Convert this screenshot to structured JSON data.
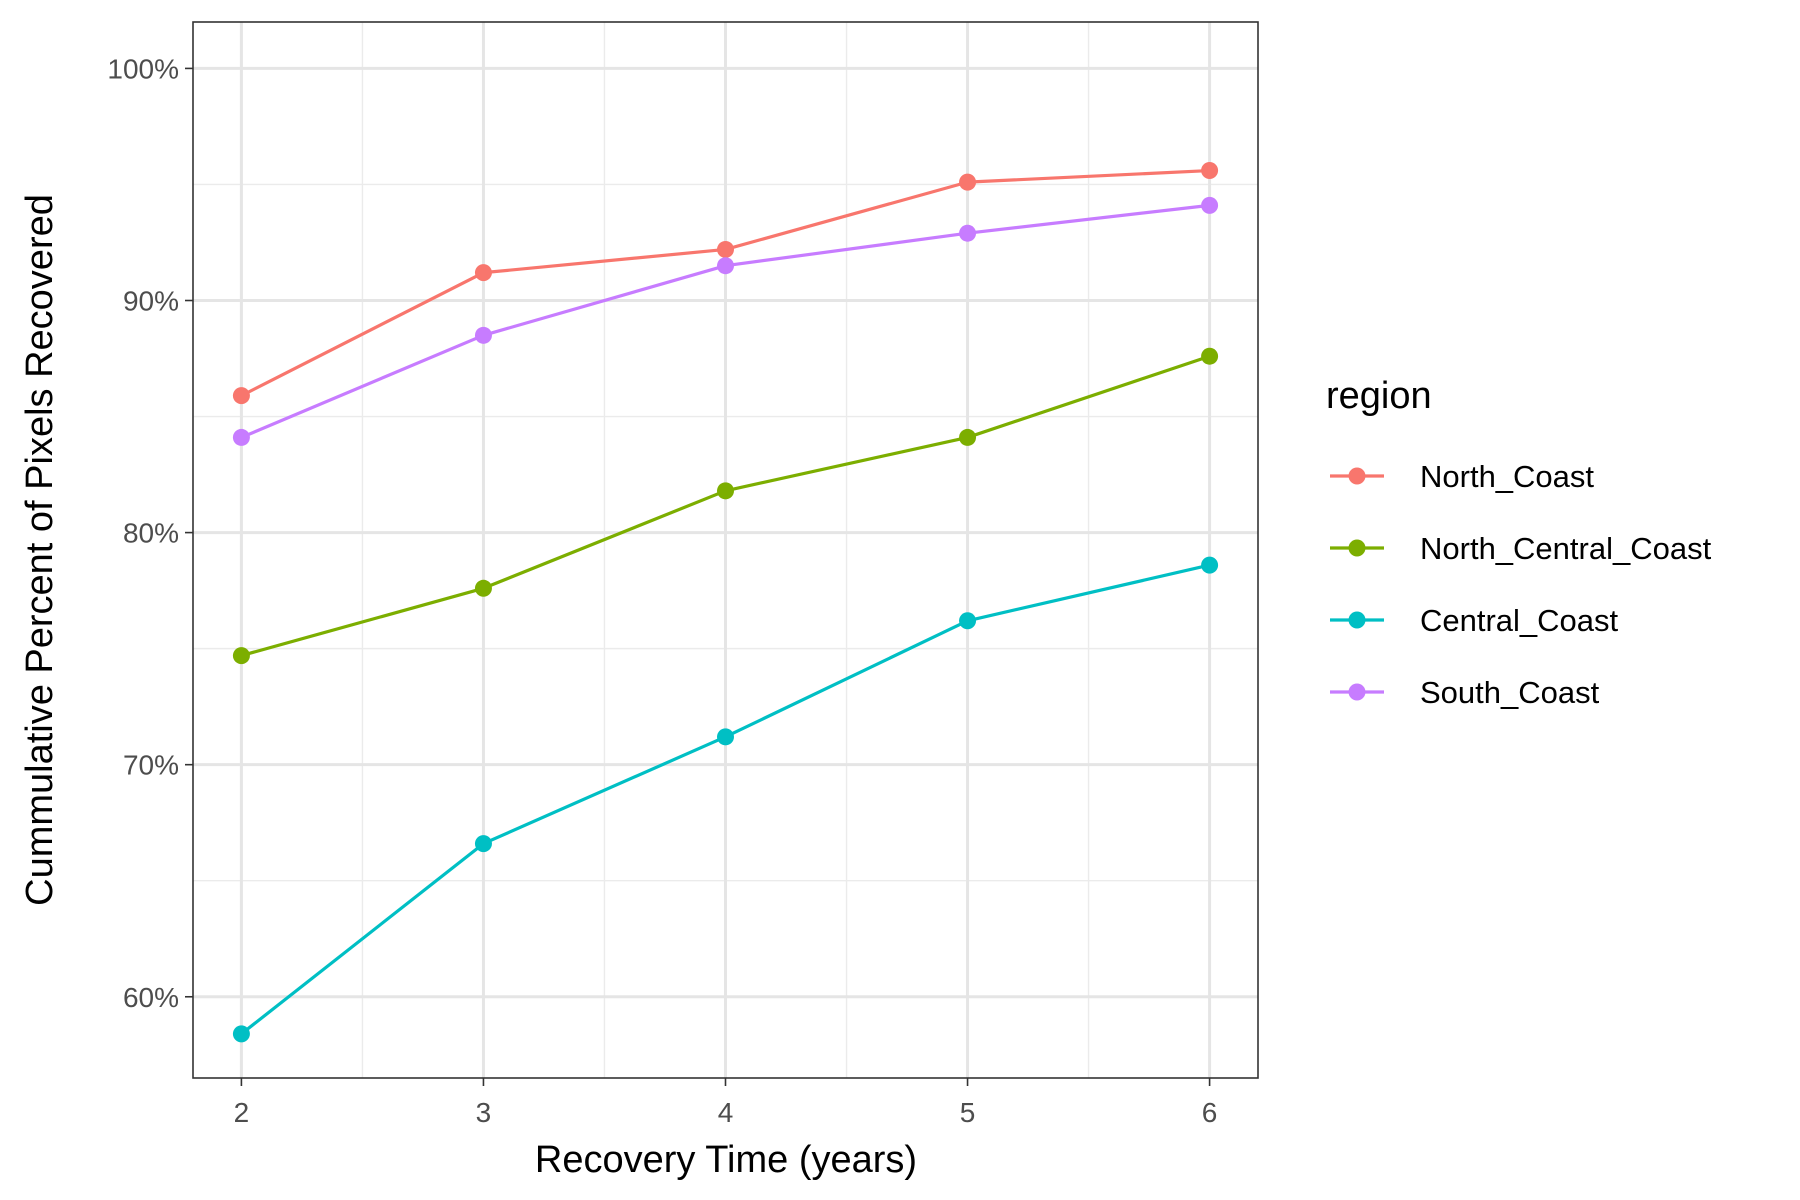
{
  "chart_data": {
    "type": "line",
    "xlabel": "Recovery Time (years)",
    "ylabel": "Cummulative Percent of Pixels Recovered",
    "x": [
      2,
      3,
      4,
      5,
      6
    ],
    "x_ticks": [
      "2",
      "3",
      "4",
      "5",
      "6"
    ],
    "xlim": [
      1.8,
      6.2
    ],
    "ylim": [
      56.5,
      102
    ],
    "y_ticks": [
      {
        "value": 60,
        "label": "60%"
      },
      {
        "value": 70,
        "label": "70%"
      },
      {
        "value": 80,
        "label": "80%"
      },
      {
        "value": 90,
        "label": "90%"
      },
      {
        "value": 100,
        "label": "100%"
      }
    ],
    "grid": true,
    "legend": {
      "title": "region",
      "position": "right"
    },
    "series": [
      {
        "name": "North_Coast",
        "color": "#F8766D",
        "values": [
          85.9,
          91.2,
          92.2,
          95.1,
          95.6
        ]
      },
      {
        "name": "North_Central_Coast",
        "color": "#7CAE00",
        "values": [
          74.7,
          77.6,
          81.8,
          84.1,
          87.6
        ]
      },
      {
        "name": "Central_Coast",
        "color": "#00BFC4",
        "values": [
          58.4,
          66.6,
          71.2,
          76.2,
          78.6
        ]
      },
      {
        "name": "South_Coast",
        "color": "#C77CFF",
        "values": [
          84.1,
          88.5,
          91.5,
          92.9,
          94.1
        ]
      }
    ]
  }
}
